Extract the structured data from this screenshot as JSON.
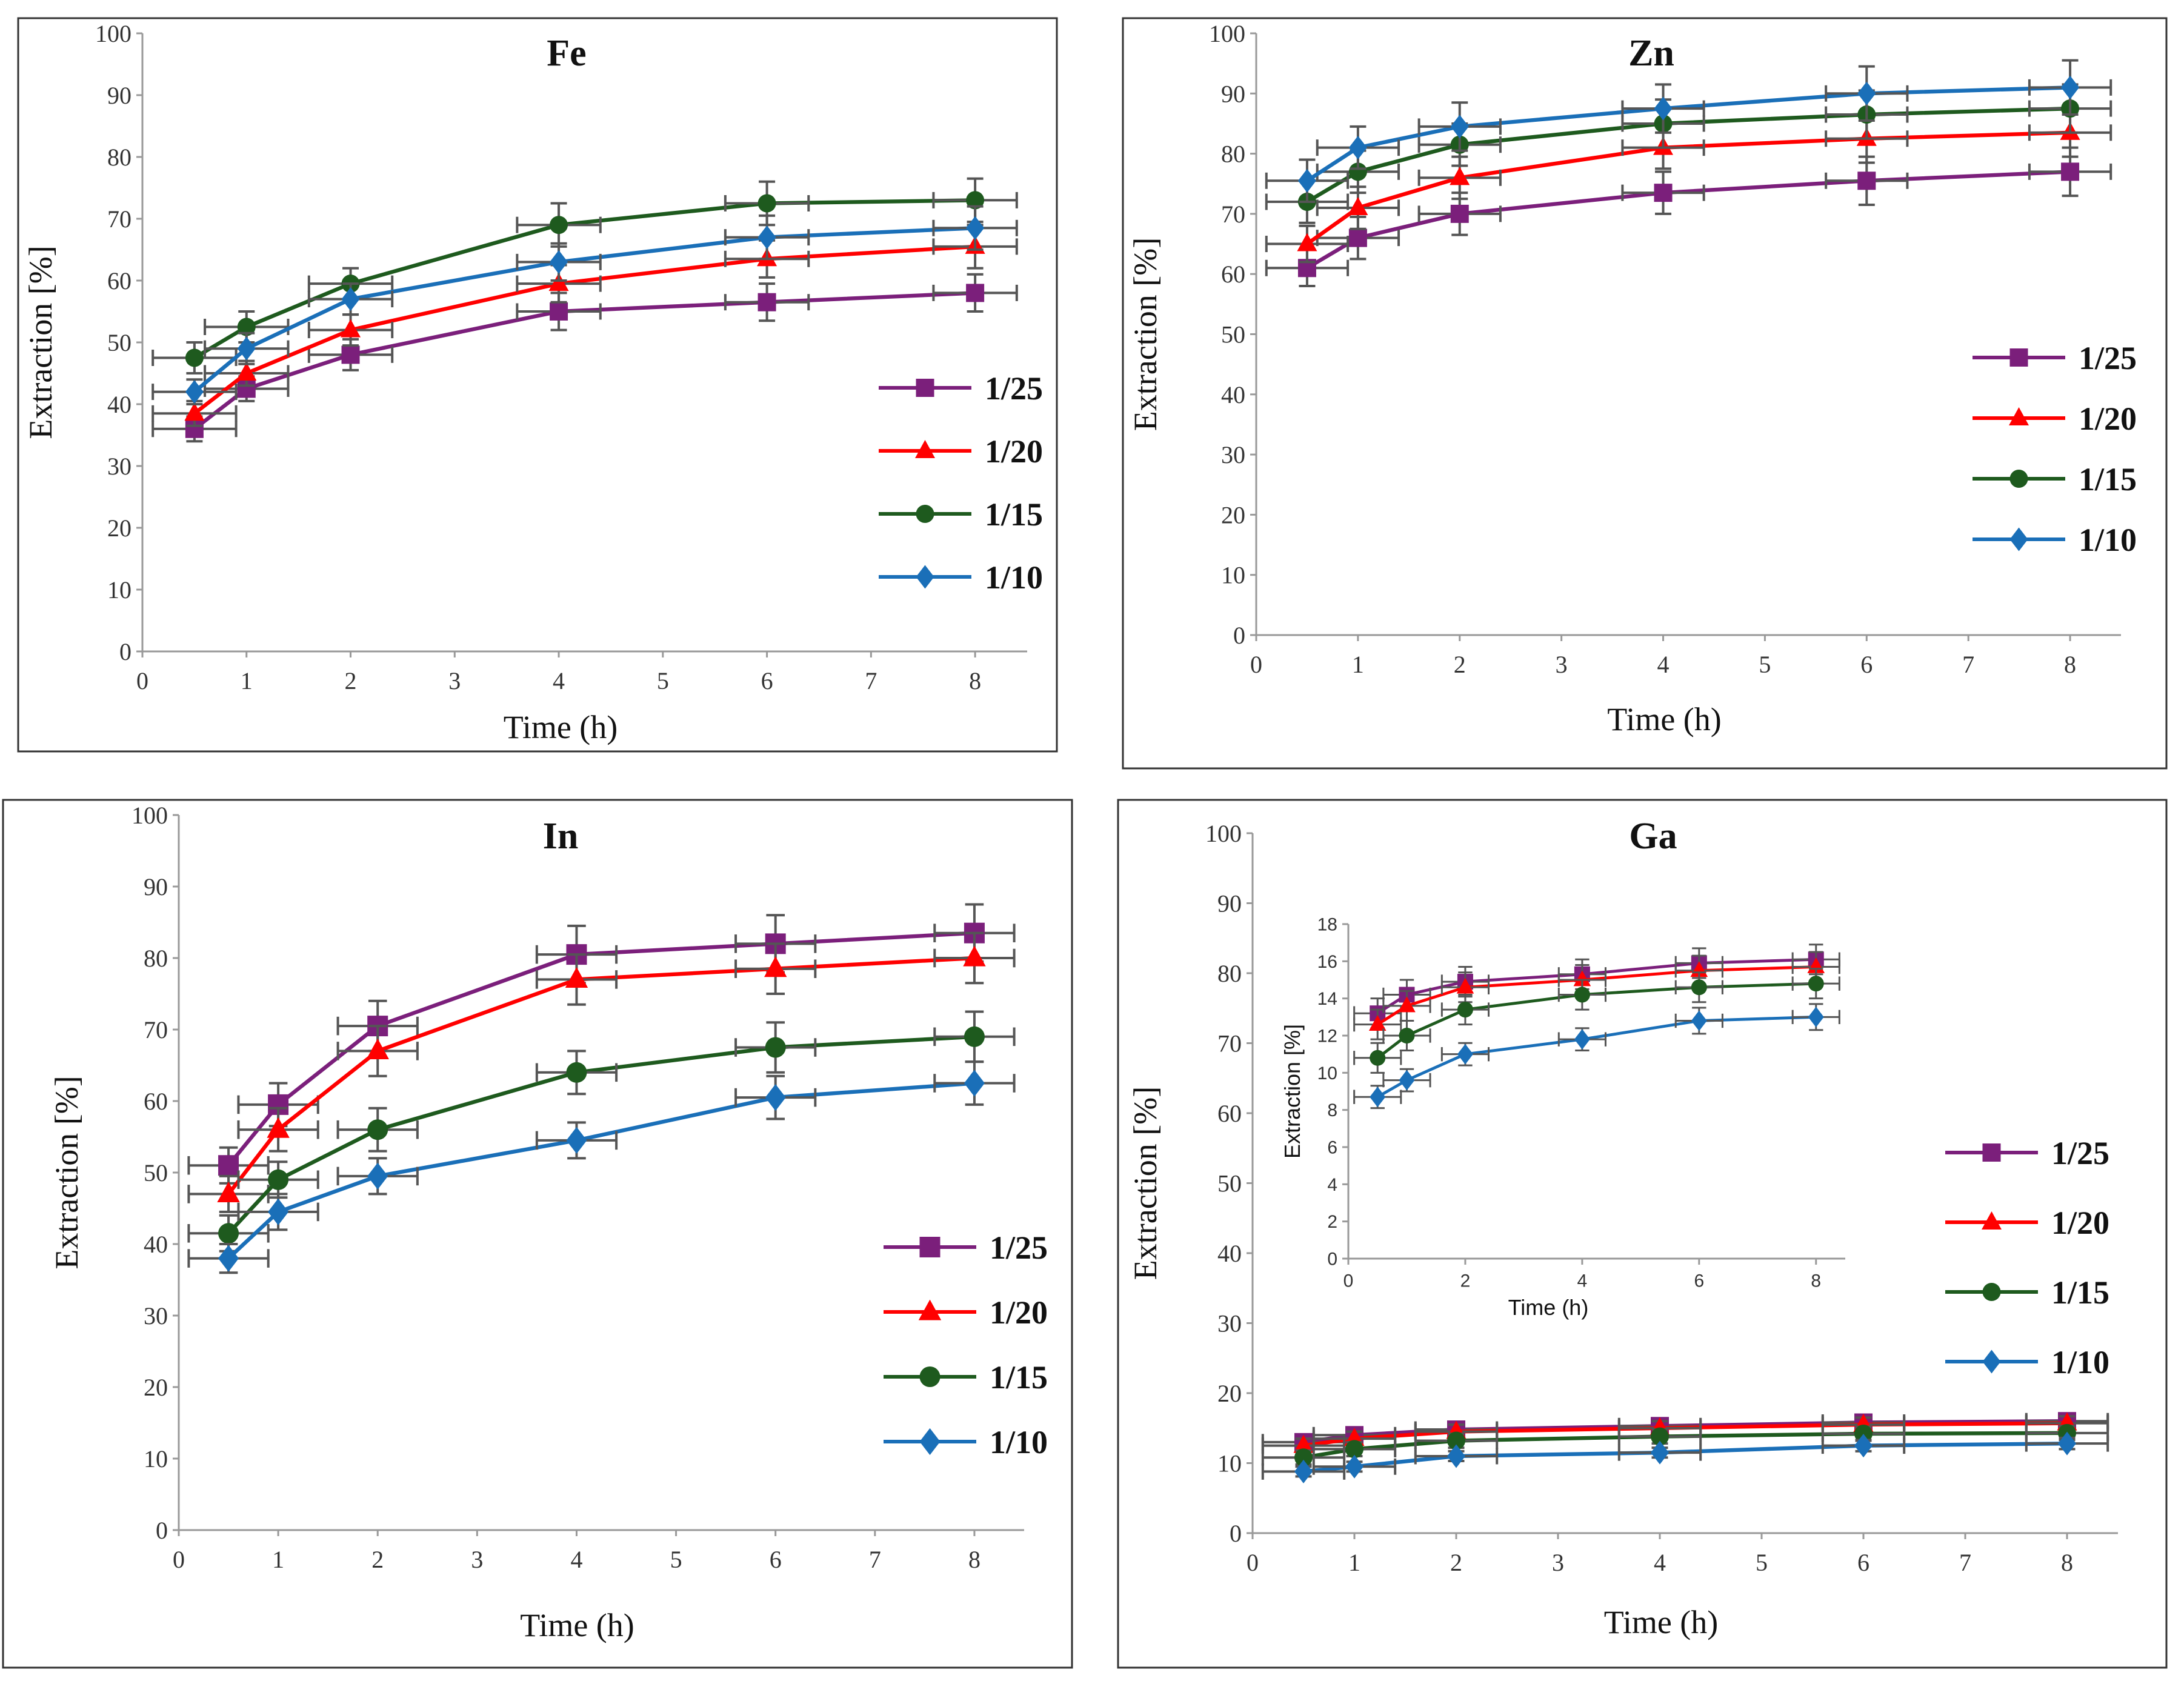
{
  "chart_data": [
    {
      "type": "line",
      "title": "Fe",
      "xlabel": "Time (h)",
      "ylabel": "Extraction [%]",
      "xlim": [
        0,
        8.5
      ],
      "ylim": [
        0,
        100
      ],
      "xticks": [
        "0",
        "1",
        "2",
        "3",
        "4",
        "5",
        "6",
        "7",
        "8"
      ],
      "yticks": [
        "0",
        "10",
        "20",
        "30",
        "40",
        "50",
        "60",
        "70",
        "80",
        "90",
        "100"
      ],
      "x": [
        0.5,
        1,
        2,
        4,
        6,
        8
      ],
      "legend_position": "lower-right",
      "series": [
        {
          "name": "1/25",
          "color": "#7b1f7b",
          "marker": "square",
          "values": [
            36,
            42.5,
            48,
            55,
            56.5,
            58
          ],
          "y_error": [
            2,
            2,
            2.5,
            3,
            3,
            3
          ],
          "x_error": 0.4
        },
        {
          "name": "1/20",
          "color": "#ff0000",
          "marker": "triangle",
          "values": [
            38.5,
            45,
            52,
            59.5,
            63.5,
            65.5
          ],
          "y_error": [
            2,
            2,
            2.5,
            3,
            3,
            3.5
          ],
          "x_error": 0.4
        },
        {
          "name": "1/15",
          "color": "#1e5a1e",
          "marker": "circle",
          "values": [
            47.5,
            52.5,
            59.5,
            69,
            72.5,
            73
          ],
          "y_error": [
            2.5,
            2.5,
            2.5,
            3.5,
            3.5,
            3.5
          ],
          "x_error": 0.4
        },
        {
          "name": "1/10",
          "color": "#1a6fb8",
          "marker": "diamond",
          "values": [
            42,
            49,
            57,
            63,
            67,
            68.5
          ],
          "y_error": [
            2,
            2.5,
            2.5,
            3,
            3.5,
            3.5
          ],
          "x_error": 0.4
        }
      ]
    },
    {
      "type": "line",
      "title": "Zn",
      "xlabel": "Time (h)",
      "ylabel": "Extraction [%]",
      "xlim": [
        0,
        8.5
      ],
      "ylim": [
        0,
        100
      ],
      "xticks": [
        "0",
        "1",
        "2",
        "3",
        "4",
        "5",
        "6",
        "7",
        "8"
      ],
      "yticks": [
        "0",
        "10",
        "20",
        "30",
        "40",
        "50",
        "60",
        "70",
        "80",
        "90",
        "100"
      ],
      "x": [
        0.5,
        1,
        2,
        4,
        6,
        8
      ],
      "legend_position": "right",
      "series": [
        {
          "name": "1/25",
          "color": "#7b1f7b",
          "marker": "square",
          "values": [
            61,
            66,
            70,
            73.5,
            75.5,
            77
          ],
          "y_error": [
            3,
            3.5,
            3.5,
            3.5,
            4,
            4
          ],
          "x_error": 0.4
        },
        {
          "name": "1/20",
          "color": "#ff0000",
          "marker": "triangle",
          "values": [
            65,
            71,
            76,
            81,
            82.5,
            83.5
          ],
          "y_error": [
            3,
            3.5,
            3.5,
            3.5,
            4,
            4
          ],
          "x_error": 0.4
        },
        {
          "name": "1/15",
          "color": "#1e5a1e",
          "marker": "circle",
          "values": [
            72,
            77,
            81.5,
            85,
            86.5,
            87.5
          ],
          "y_error": [
            3.5,
            3.5,
            3.5,
            4,
            4,
            4
          ],
          "x_error": 0.4
        },
        {
          "name": "1/10",
          "color": "#1a6fb8",
          "marker": "diamond",
          "values": [
            75.5,
            81,
            84.5,
            87.5,
            90,
            91
          ],
          "y_error": [
            3.5,
            3.5,
            4,
            4,
            4.5,
            4.5
          ],
          "x_error": 0.4
        }
      ]
    },
    {
      "type": "line",
      "title": "In",
      "xlabel": "Time (h)",
      "ylabel": "Extraction [%]",
      "xlim": [
        0,
        8.5
      ],
      "ylim": [
        0,
        100
      ],
      "xticks": [
        "0",
        "1",
        "2",
        "3",
        "4",
        "5",
        "6",
        "7",
        "8"
      ],
      "yticks": [
        "0",
        "10",
        "20",
        "30",
        "40",
        "50",
        "60",
        "70",
        "80",
        "90",
        "100"
      ],
      "x": [
        0.5,
        1,
        2,
        4,
        6,
        8
      ],
      "legend_position": "lower-right",
      "series": [
        {
          "name": "1/25",
          "color": "#7b1f7b",
          "marker": "square",
          "values": [
            51,
            59.5,
            70.5,
            80.5,
            82,
            83.5
          ],
          "y_error": [
            2.5,
            3,
            3.5,
            4,
            4,
            4
          ],
          "x_error": 0.4
        },
        {
          "name": "1/20",
          "color": "#ff0000",
          "marker": "triangle",
          "values": [
            47,
            56,
            67,
            77,
            78.5,
            80
          ],
          "y_error": [
            2.5,
            3,
            3.5,
            3.5,
            3.5,
            3.5
          ],
          "x_error": 0.4
        },
        {
          "name": "1/15",
          "color": "#1e5a1e",
          "marker": "circle",
          "values": [
            41.5,
            49,
            56,
            64,
            67.5,
            69
          ],
          "y_error": [
            2.5,
            2.5,
            3,
            3,
            3.5,
            3.5
          ],
          "x_error": 0.4
        },
        {
          "name": "1/10",
          "color": "#1a6fb8",
          "marker": "diamond",
          "values": [
            38,
            44.5,
            49.5,
            54.5,
            60.5,
            62.5
          ],
          "y_error": [
            2,
            2.5,
            2.5,
            2.5,
            3,
            3
          ],
          "x_error": 0.4
        }
      ]
    },
    {
      "type": "line",
      "title": "Ga",
      "xlabel": "Time (h)",
      "ylabel": "Extraction [%]",
      "xlim": [
        0,
        8.5
      ],
      "ylim": [
        0,
        100
      ],
      "xticks": [
        "0",
        "1",
        "2",
        "3",
        "4",
        "5",
        "6",
        "7",
        "8"
      ],
      "yticks": [
        "0",
        "10",
        "20",
        "30",
        "40",
        "50",
        "60",
        "70",
        "80",
        "90",
        "100"
      ],
      "x": [
        0.5,
        1,
        2,
        4,
        6,
        8
      ],
      "legend_position": "right",
      "series": [
        {
          "name": "1/25",
          "color": "#7b1f7b",
          "marker": "square",
          "values": [
            13,
            14,
            14.8,
            15.3,
            15.8,
            16
          ],
          "y_error": [
            1,
            1,
            1,
            1,
            1,
            1
          ],
          "x_error": 0.4
        },
        {
          "name": "1/20",
          "color": "#ff0000",
          "marker": "triangle",
          "values": [
            12.5,
            13.5,
            14.5,
            15,
            15.5,
            15.7
          ],
          "y_error": [
            1,
            1,
            1,
            1,
            1,
            1
          ],
          "x_error": 0.4
        },
        {
          "name": "1/15",
          "color": "#1e5a1e",
          "marker": "circle",
          "values": [
            10.8,
            12,
            13.2,
            13.8,
            14.2,
            14.3
          ],
          "y_error": [
            1,
            1,
            1,
            1,
            1,
            1
          ],
          "x_error": 0.4
        },
        {
          "name": "1/10",
          "color": "#1a6fb8",
          "marker": "diamond",
          "values": [
            8.8,
            9.5,
            11,
            11.5,
            12.5,
            12.8
          ],
          "y_error": [
            0.7,
            0.7,
            0.7,
            0.7,
            0.8,
            0.8
          ],
          "x_error": 0.4
        }
      ],
      "inset": {
        "xlabel": "Time (h)",
        "ylabel": "Extraction [%]",
        "xlim": [
          0,
          8.5
        ],
        "ylim": [
          0,
          18
        ],
        "xticks": [
          "0",
          "2",
          "4",
          "6",
          "8"
        ],
        "yticks": [
          "0",
          "2",
          "4",
          "6",
          "8",
          "10",
          "12",
          "14",
          "16",
          "18"
        ],
        "x": [
          0.5,
          1,
          2,
          4,
          6,
          8
        ],
        "series": [
          {
            "name": "1/25",
            "color": "#7b1f7b",
            "marker": "square",
            "values": [
              13.2,
              14.2,
              14.9,
              15.3,
              15.9,
              16.1
            ],
            "y_error": [
              0.8,
              0.8,
              0.8,
              0.8,
              0.8,
              0.8
            ],
            "x_error": 0.4
          },
          {
            "name": "1/20",
            "color": "#ff0000",
            "marker": "triangle",
            "values": [
              12.6,
              13.6,
              14.6,
              15,
              15.5,
              15.7
            ],
            "y_error": [
              0.8,
              0.8,
              0.8,
              0.8,
              0.8,
              0.8
            ],
            "x_error": 0.4
          },
          {
            "name": "1/15",
            "color": "#1e5a1e",
            "marker": "circle",
            "values": [
              10.8,
              12,
              13.4,
              14.2,
              14.6,
              14.8
            ],
            "y_error": [
              0.8,
              0.8,
              0.8,
              0.8,
              0.8,
              0.8
            ],
            "x_error": 0.4
          },
          {
            "name": "1/10",
            "color": "#1a6fb8",
            "marker": "diamond",
            "values": [
              8.7,
              9.6,
              11,
              11.8,
              12.8,
              13
            ],
            "y_error": [
              0.6,
              0.6,
              0.6,
              0.6,
              0.7,
              0.7
            ],
            "x_error": 0.4
          }
        ]
      }
    }
  ]
}
